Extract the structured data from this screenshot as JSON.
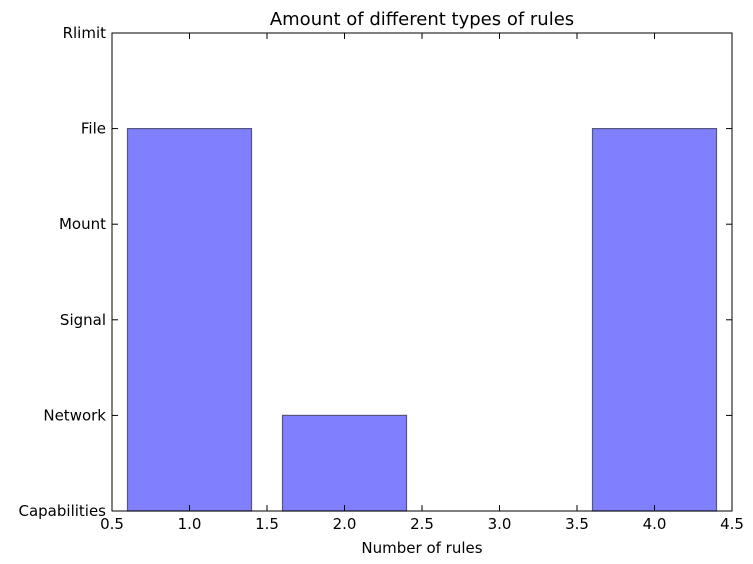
{
  "chart_data": {
    "type": "bar",
    "title": "Amount of different types of rules",
    "xlabel": "Number of rules",
    "ylabel": "",
    "x": [
      1.0,
      2.0,
      4.0
    ],
    "values": [
      4,
      1,
      4
    ],
    "bar_width": 0.8,
    "xlim": [
      0.5,
      4.5
    ],
    "ylim": [
      0,
      5
    ],
    "xticks": [
      "0.5",
      "1.0",
      "1.5",
      "2.0",
      "2.5",
      "3.0",
      "3.5",
      "4.0",
      "4.5"
    ],
    "yticks": [
      "Capabilities",
      "Network",
      "Signal",
      "Mount",
      "File",
      "Rlimit"
    ],
    "bar_color": "#8080ff",
    "bar_edge_color": "#55557f",
    "grid": false,
    "legend": "none"
  }
}
